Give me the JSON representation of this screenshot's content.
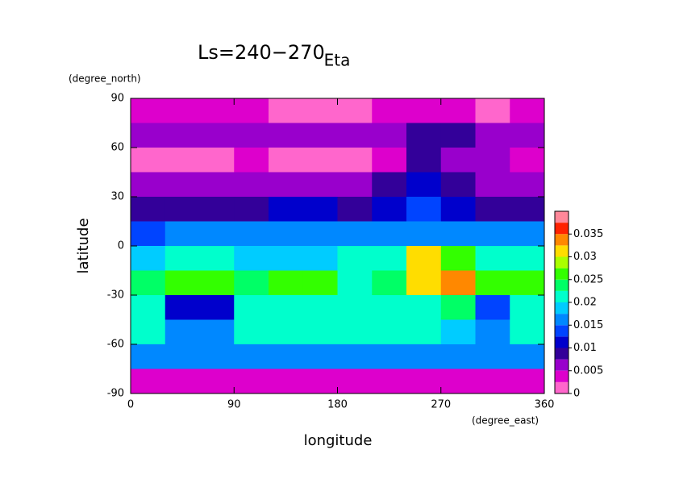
{
  "chart_data": {
    "type": "heatmap",
    "title": "Eta",
    "annotation": "Ls=240−270",
    "x_label": "longitude",
    "y_label": "latitude",
    "x_unit": "(degree_east)",
    "y_unit": "(degree_north)",
    "x": [
      15,
      45,
      75,
      105,
      135,
      165,
      195,
      225,
      255,
      285,
      315,
      345
    ],
    "y": [
      82.5,
      67.5,
      52.5,
      37.5,
      22.5,
      7.5,
      -7.5,
      -22.5,
      -37.5,
      -52.5,
      -67.5,
      -82.5
    ],
    "z": [
      [
        0.003,
        0.003,
        0.004,
        0.003,
        0.002,
        0.001,
        0.002,
        0.003,
        0.004,
        0.003,
        0.002,
        0.003
      ],
      [
        0.005,
        0.006,
        0.007,
        0.007,
        0.006,
        0.006,
        0.005,
        0.007,
        0.008,
        0.008,
        0.006,
        0.005
      ],
      [
        0.001,
        0.001,
        0.002,
        0.003,
        0.002,
        0.001,
        0.002,
        0.003,
        0.008,
        0.006,
        0.005,
        0.004
      ],
      [
        0.006,
        0.006,
        0.007,
        0.007,
        0.007,
        0.007,
        0.006,
        0.008,
        0.012,
        0.008,
        0.007,
        0.006
      ],
      [
        0.009,
        0.009,
        0.009,
        0.009,
        0.01,
        0.01,
        0.009,
        0.012,
        0.013,
        0.01,
        0.009,
        0.009
      ],
      [
        0.014,
        0.015,
        0.016,
        0.015,
        0.016,
        0.016,
        0.015,
        0.017,
        0.016,
        0.015,
        0.016,
        0.016
      ],
      [
        0.019,
        0.02,
        0.021,
        0.019,
        0.019,
        0.019,
        0.02,
        0.021,
        0.031,
        0.025,
        0.02,
        0.02
      ],
      [
        0.024,
        0.027,
        0.027,
        0.023,
        0.026,
        0.026,
        0.022,
        0.023,
        0.031,
        0.033,
        0.027,
        0.025
      ],
      [
        0.021,
        0.012,
        0.011,
        0.02,
        0.021,
        0.022,
        0.021,
        0.021,
        0.022,
        0.023,
        0.013,
        0.021
      ],
      [
        0.021,
        0.016,
        0.017,
        0.02,
        0.021,
        0.021,
        0.021,
        0.02,
        0.02,
        0.019,
        0.017,
        0.02
      ],
      [
        0.016,
        0.016,
        0.016,
        0.016,
        0.016,
        0.016,
        0.016,
        0.016,
        0.016,
        0.016,
        0.016,
        0.016
      ],
      [
        0.003,
        0.003,
        0.003,
        0.003,
        0.003,
        0.003,
        0.003,
        0.003,
        0.003,
        0.003,
        0.003,
        0.003
      ]
    ],
    "xlim": [
      0,
      360
    ],
    "xticks": [
      0,
      90,
      180,
      270,
      360
    ],
    "ylim": [
      -90,
      90
    ],
    "yticks": [
      -90,
      -60,
      -30,
      0,
      30,
      60,
      90
    ],
    "clim": [
      0,
      0.04
    ],
    "cticks": [
      0,
      0.005,
      0.01,
      0.015,
      0.02,
      0.025,
      0.03,
      0.035
    ],
    "colors": [
      "#ff66cc",
      "#dd00cc",
      "#9900cc",
      "#330099",
      "#0000cc",
      "#0044ff",
      "#0088ff",
      "#00ccff",
      "#00ffcc",
      "#00ff66",
      "#33ff00",
      "#aaff00",
      "#ffdd00",
      "#ff8800",
      "#ff2200",
      "#ff8899"
    ]
  }
}
